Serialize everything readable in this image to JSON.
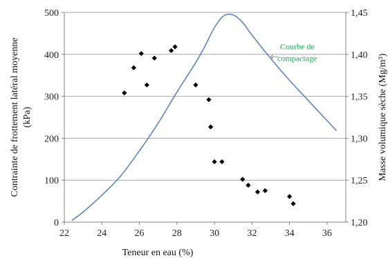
{
  "chart_data": {
    "type": "scatter",
    "title": "",
    "xlabel": "Teneur en eau (%)",
    "ylabel_left_line1": "Contrainte de frottement latéral moyenne",
    "ylabel_left_line2": "(kPa)",
    "ylabel_right": "Masse volumique sèche (Mg/m³)",
    "xlim": [
      22,
      37
    ],
    "xticks": [
      "22",
      "24",
      "26",
      "28",
      "30",
      "32",
      "34",
      "36"
    ],
    "xtick_values": [
      22,
      24,
      26,
      28,
      30,
      32,
      34,
      36
    ],
    "ylim_left": [
      0,
      500
    ],
    "yticks_left": [
      "0",
      "100",
      "200",
      "300",
      "400",
      "500"
    ],
    "ytick_values_left": [
      0,
      100,
      200,
      300,
      400,
      500
    ],
    "ylim_right": [
      1.2,
      1.45
    ],
    "yticks_right": [
      "1,20",
      "1,25",
      "1,30",
      "1,35",
      "1,40",
      "1,45"
    ],
    "ytick_values_right": [
      1.2,
      1.25,
      1.3,
      1.35,
      1.4,
      1.45
    ],
    "grid": "horizontal",
    "series": [
      {
        "type": "scatter",
        "axis": "left",
        "color": "#000000",
        "marker": "diamond",
        "points": [
          {
            "x": 25.2,
            "y": 308
          },
          {
            "x": 25.7,
            "y": 368
          },
          {
            "x": 26.1,
            "y": 402
          },
          {
            "x": 26.4,
            "y": 327
          },
          {
            "x": 26.8,
            "y": 391
          },
          {
            "x": 27.7,
            "y": 409
          },
          {
            "x": 27.9,
            "y": 418
          },
          {
            "x": 29.0,
            "y": 327
          },
          {
            "x": 29.7,
            "y": 292
          },
          {
            "x": 29.8,
            "y": 227
          },
          {
            "x": 30.0,
            "y": 144
          },
          {
            "x": 30.4,
            "y": 144
          },
          {
            "x": 31.5,
            "y": 102
          },
          {
            "x": 31.8,
            "y": 88
          },
          {
            "x": 32.3,
            "y": 72
          },
          {
            "x": 32.7,
            "y": 75
          },
          {
            "x": 34.0,
            "y": 61
          },
          {
            "x": 34.2,
            "y": 44
          }
        ]
      },
      {
        "type": "line",
        "axis": "right",
        "color": "#5b84bd",
        "points": [
          {
            "x": 22.4,
            "y": 1.202
          },
          {
            "x": 23.0,
            "y": 1.212
          },
          {
            "x": 24.0,
            "y": 1.232
          },
          {
            "x": 25.0,
            "y": 1.255
          },
          {
            "x": 26.0,
            "y": 1.285
          },
          {
            "x": 27.0,
            "y": 1.318
          },
          {
            "x": 28.0,
            "y": 1.355
          },
          {
            "x": 29.0,
            "y": 1.39
          },
          {
            "x": 29.5,
            "y": 1.41
          },
          {
            "x": 30.0,
            "y": 1.432
          },
          {
            "x": 30.5,
            "y": 1.446
          },
          {
            "x": 31.0,
            "y": 1.447
          },
          {
            "x": 31.5,
            "y": 1.438
          },
          {
            "x": 32.0,
            "y": 1.423
          },
          {
            "x": 33.0,
            "y": 1.395
          },
          {
            "x": 34.0,
            "y": 1.369
          },
          {
            "x": 35.0,
            "y": 1.345
          },
          {
            "x": 36.0,
            "y": 1.321
          },
          {
            "x": 36.5,
            "y": 1.309
          }
        ]
      }
    ],
    "annotation": {
      "line1": "Courbe de",
      "line2": "compactage",
      "color": "#22aa55",
      "text_x": 33.5,
      "text_y": 1.406,
      "arrow_from_x": 33.4,
      "arrow_to_x": 32.9,
      "arrow_y": 1.397
    }
  }
}
